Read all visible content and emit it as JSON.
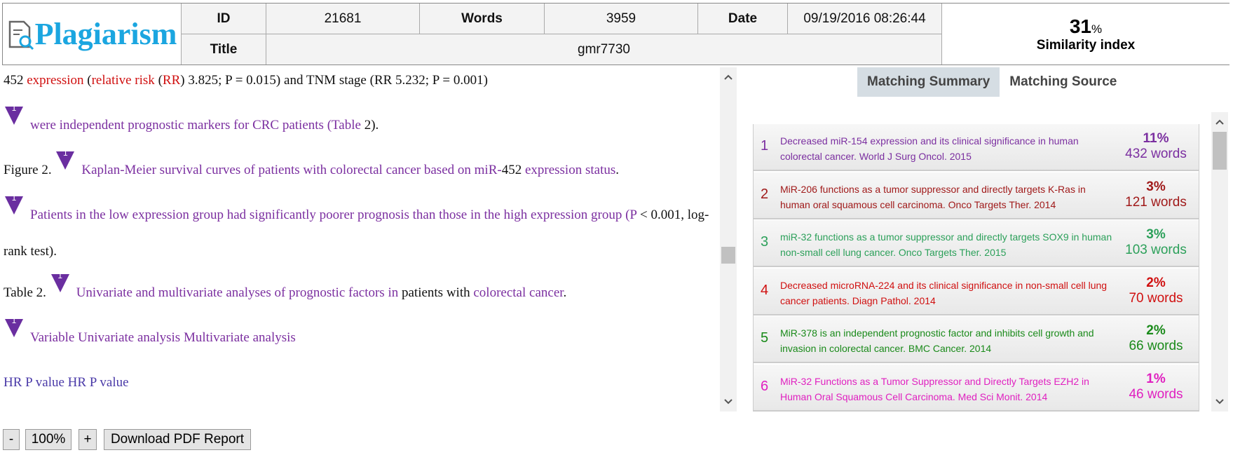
{
  "header": {
    "logo": "Plagiarism",
    "id_label": "ID",
    "id": "21681",
    "words_label": "Words",
    "words": "3959",
    "date_label": "Date",
    "date": "09/19/2016 08:26:44",
    "title_label": "Title",
    "title": "gmr7730",
    "similarity_value": "31",
    "similarity_sign": "%",
    "similarity_label": "Similarity index"
  },
  "document": {
    "paragraphs": [
      {
        "segments": [
          {
            "text": "452 ",
            "color": "#111111"
          },
          {
            "text": "expression",
            "color": "#d01010"
          },
          {
            "text": " (",
            "color": "#111111"
          },
          {
            "text": "relative risk",
            "color": "#d01010"
          },
          {
            "text": " (",
            "color": "#111111"
          },
          {
            "text": "RR",
            "color": "#d01010"
          },
          {
            "text": ") 3.825; P = 0.015) and TNM stage (RR 5.232; P = 0.001)",
            "color": "#111111"
          }
        ]
      },
      {
        "marker": "1",
        "segments": [
          {
            "text": "were independent prognostic markers for CRC patients (Table",
            "color": "#7b2fa0"
          },
          {
            "text": " 2).",
            "color": "#111111"
          }
        ]
      },
      {
        "segments": [
          {
            "text": "Figure 2. ",
            "color": "#111111"
          }
        ],
        "marker": "1",
        "after": [
          {
            "text": "Kaplan-Meier survival curves of patients with colorectal cancer based on miR-",
            "color": "#7b2fa0"
          },
          {
            "text": "452",
            "color": "#111111"
          },
          {
            "text": " expression status",
            "color": "#7b2fa0"
          },
          {
            "text": ".",
            "color": "#111111"
          }
        ]
      },
      {
        "marker": "1",
        "segments": [
          {
            "text": "Patients in the low expression group had significantly poorer prognosis than those in the high expression group (P",
            "color": "#7b2fa0"
          },
          {
            "text": " < 0.001, log-rank test).",
            "color": "#111111"
          }
        ]
      },
      {
        "segments": [
          {
            "text": "Table 2. ",
            "color": "#111111"
          }
        ],
        "marker": "1",
        "after": [
          {
            "text": "Univariate and multivariate analyses of prognostic factors in",
            "color": "#7b2fa0"
          },
          {
            "text": " patients with ",
            "color": "#111111"
          },
          {
            "text": "colorectal cancer",
            "color": "#7b2fa0"
          },
          {
            "text": ".",
            "color": "#111111"
          }
        ]
      },
      {
        "marker": "1",
        "segments": [
          {
            "text": "Variable Univariate analysis Multivariate analysis",
            "color": "#7b2fa0"
          }
        ]
      },
      {
        "segments": [
          {
            "text": "HR P value HR P value",
            "color": "#4a3aa8"
          }
        ]
      }
    ]
  },
  "tabs": [
    "Matching Summary",
    "Matching Source"
  ],
  "sources": [
    {
      "number": "1",
      "text": "Decreased miR-154 expression and its clinical significance in human colorectal cancer. World J Surg Oncol. 2015",
      "percent": "11%",
      "words": "432 words",
      "color": "#7b2fa0"
    },
    {
      "number": "2",
      "text": "MiR-206 functions as a tumor suppressor and directly targets K-Ras in human oral squamous cell carcinoma. Onco Targets Ther. 2014",
      "percent": "3%",
      "words": "121 words",
      "color": "#a01a1a"
    },
    {
      "number": "3",
      "text": "miR-32 functions as a tumor suppressor and directly targets SOX9 in human non-small cell lung cancer. Onco Targets Ther. 2015",
      "percent": "3%",
      "words": "103 words",
      "color": "#2ca05a"
    },
    {
      "number": "4",
      "text": "Decreased microRNA-224 and its clinical significance in non-small cell lung cancer patients. Diagn Pathol. 2014",
      "percent": "2%",
      "words": "70 words",
      "color": "#d01010"
    },
    {
      "number": "5",
      "text": "MiR-378 is an independent prognostic factor and inhibits cell growth and invasion in colorectal cancer. BMC Cancer. 2014",
      "percent": "2%",
      "words": "66 words",
      "color": "#1a8a1a"
    },
    {
      "number": "6",
      "text": "MiR-32 Functions as a Tumor Suppressor and Directly Targets EZH2 in Human Oral Squamous Cell Carcinoma. Med Sci Monit. 2014",
      "percent": "1%",
      "words": "46 words",
      "color": "#e020c0"
    }
  ],
  "toolbar": {
    "zoom_out": "-",
    "zoom": "100%",
    "zoom_in": "+",
    "download": "Download PDF Report"
  }
}
